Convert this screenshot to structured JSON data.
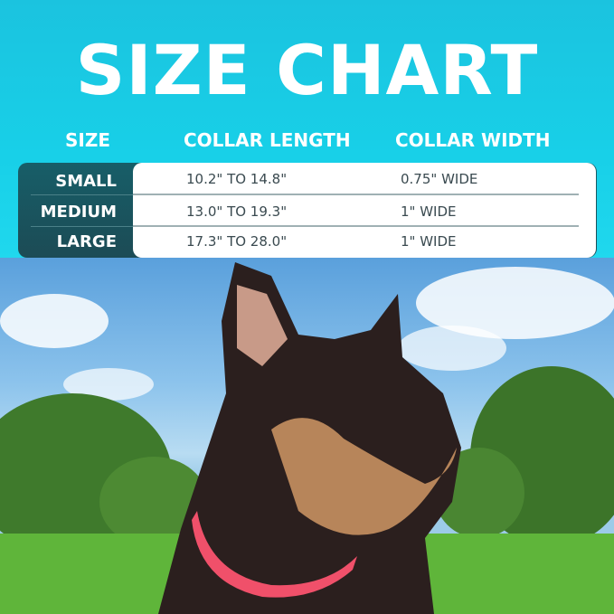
{
  "title": "SIZE CHART",
  "table": {
    "headers": [
      "SIZE",
      "COLLAR LENGTH",
      "COLLAR WIDTH"
    ],
    "rows": [
      {
        "size": "SMALL",
        "length": "10.2\" TO 14.8\"",
        "width": "0.75\" WIDE"
      },
      {
        "size": "MEDIUM",
        "length": "13.0\" TO 19.3\"",
        "width": "1\" WIDE"
      },
      {
        "size": "LARGE",
        "length": "17.3\" TO 28.0\"",
        "width": "1\" WIDE"
      }
    ]
  },
  "colors": {
    "banner": "#1bc3df",
    "table_dark": "#175e68",
    "collar": "#f0506a"
  }
}
